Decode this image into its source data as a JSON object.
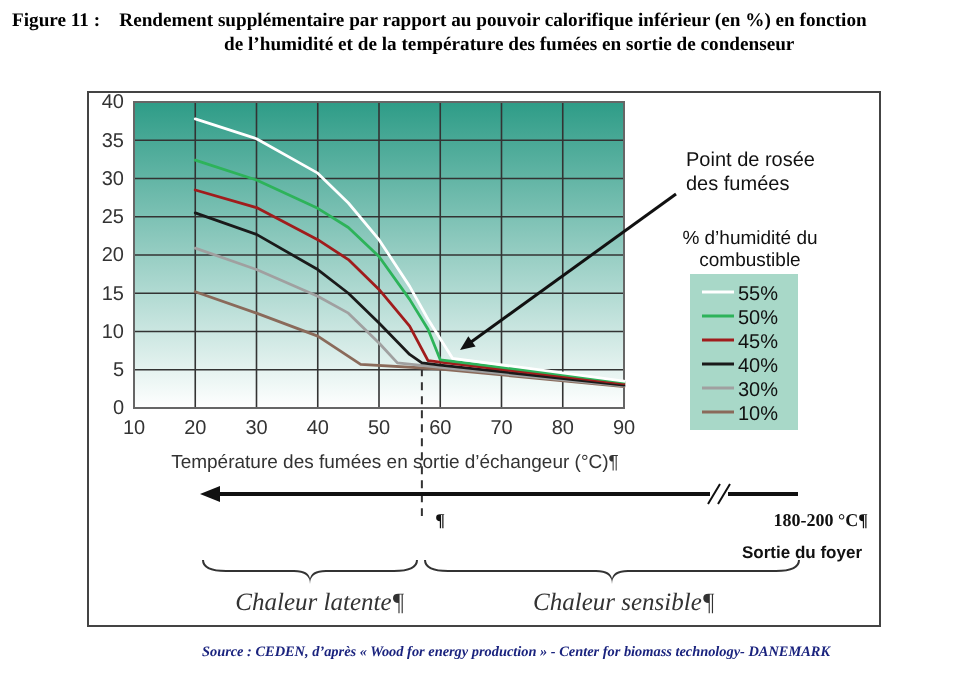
{
  "chart_data": {
    "type": "line",
    "title": "Figure 11 :    Rendement supplémentaire par rapport au pouvoir calorifique inférieur (en %) en fonction de l’humidité et de la température des fumées en sortie de condenseur",
    "xlabel": "Température des fumées en sortie d’échangeur (°C)¶",
    "legend_title": "% d’humidité du combustible",
    "xlim": [
      10,
      90
    ],
    "xticks": [
      10,
      20,
      30,
      40,
      50,
      60,
      70,
      80,
      90
    ],
    "ylim": [
      0,
      40
    ],
    "yticks": [
      0,
      5,
      10,
      15,
      20,
      25,
      30,
      35,
      40
    ],
    "grid": true,
    "legend": "right",
    "marker": "none",
    "line_style": "solid",
    "series": [
      {
        "name": "55%",
        "color": "#ffffff",
        "x": [
          20,
          30,
          40,
          45,
          50,
          55,
          58,
          62,
          90
        ],
        "values": [
          37.8,
          35.2,
          30.7,
          26.8,
          22,
          15.9,
          11.6,
          6.5,
          3.5
        ]
      },
      {
        "name": "50%",
        "color": "#2db35a",
        "x": [
          20,
          30,
          40,
          45,
          50,
          55,
          58,
          60,
          90
        ],
        "values": [
          32.4,
          29.8,
          26.1,
          23.6,
          19.8,
          14.2,
          10.3,
          6.3,
          3.4
        ]
      },
      {
        "name": "45%",
        "color": "#a01c1c",
        "x": [
          20,
          30,
          40,
          45,
          50,
          55,
          58,
          60,
          90
        ],
        "values": [
          28.5,
          26.2,
          22,
          19.4,
          15.5,
          10.7,
          6.2,
          6,
          3.2
        ]
      },
      {
        "name": "40%",
        "color": "#1a1a1a",
        "x": [
          20,
          30,
          40,
          45,
          50,
          55,
          57,
          60,
          90
        ],
        "values": [
          25.5,
          22.7,
          18.1,
          15,
          11.1,
          7,
          5.9,
          5.6,
          3
        ]
      },
      {
        "name": "30%",
        "color": "#a0a0a0",
        "x": [
          20,
          30,
          40,
          45,
          50,
          53,
          60,
          90
        ],
        "values": [
          20.9,
          18.1,
          14.6,
          12.4,
          8.5,
          5.9,
          5.3,
          2.9
        ]
      },
      {
        "name": "10%",
        "color": "#8a6a5a",
        "x": [
          20,
          30,
          40,
          47,
          60,
          90
        ],
        "values": [
          15.2,
          12.4,
          9.4,
          5.7,
          5.1,
          2.8
        ]
      }
    ],
    "ref_lines": [
      {
        "axis": "x",
        "value": 57,
        "color": "#333333",
        "line_style": "dashed"
      }
    ],
    "annotations": [
      "Point de rosée des fumées",
      "¶",
      "180-200 °C¶",
      "Sortie du foyer",
      "Chaleur latente¶",
      "Chaleur sensible¶",
      "Source : CEDEN, d’après « Wood for energy production » - Center for biomass technology- DANEMARK"
    ]
  }
}
